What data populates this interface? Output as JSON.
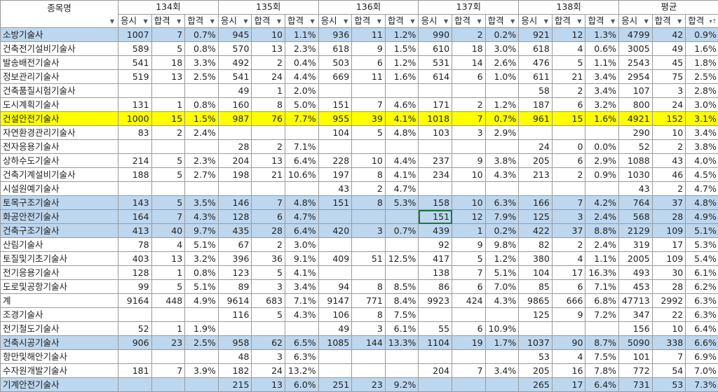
{
  "header": {
    "name_label": "종목명",
    "groups": [
      "134회",
      "135회",
      "136회",
      "137회",
      "138회",
      "평균"
    ],
    "sub_labels": [
      "응시",
      "합격",
      "합격"
    ],
    "filter_icon": "dropdown-arrow-icon",
    "sort_icon": "sort-filter-icon"
  },
  "colors": {
    "blue_highlight": "#bdd7ee",
    "yellow_highlight": "#ffff00",
    "selection": "#217346"
  },
  "selected_cell": {
    "row": "화공안전기술사",
    "column": "137회 응시"
  },
  "rows": [
    {
      "name": "소방기술사",
      "hl": "blue",
      "cells": [
        "1007",
        "7",
        "0.7%",
        "945",
        "10",
        "1.1%",
        "936",
        "11",
        "1.2%",
        "990",
        "2",
        "0.2%",
        "921",
        "12",
        "1.3%",
        "4799",
        "42",
        "0.9%"
      ]
    },
    {
      "name": "건축전기설비기술사",
      "hl": "",
      "cells": [
        "589",
        "5",
        "0.8%",
        "570",
        "13",
        "2.3%",
        "618",
        "9",
        "1.5%",
        "610",
        "18",
        "3.0%",
        "618",
        "4",
        "0.6%",
        "3005",
        "49",
        "1.6%"
      ]
    },
    {
      "name": "발송배전기술사",
      "hl": "",
      "cells": [
        "541",
        "18",
        "3.3%",
        "492",
        "2",
        "0.4%",
        "503",
        "6",
        "1.2%",
        "531",
        "14",
        "2.6%",
        "476",
        "5",
        "1.1%",
        "2543",
        "45",
        "1.8%"
      ]
    },
    {
      "name": "정보관리기술사",
      "hl": "",
      "cells": [
        "519",
        "13",
        "2.5%",
        "541",
        "24",
        "4.4%",
        "669",
        "11",
        "1.6%",
        "614",
        "6",
        "1.0%",
        "611",
        "21",
        "3.4%",
        "2954",
        "75",
        "2.5%"
      ]
    },
    {
      "name": "건축품질시험기술사",
      "hl": "",
      "cells": [
        "",
        "",
        "",
        "49",
        "1",
        "2.0%",
        "",
        "",
        "",
        "",
        "",
        "",
        "58",
        "2",
        "3.4%",
        "107",
        "3",
        "2.8%"
      ]
    },
    {
      "name": "도시계획기술사",
      "hl": "",
      "cells": [
        "131",
        "1",
        "0.8%",
        "160",
        "8",
        "5.0%",
        "151",
        "7",
        "4.6%",
        "171",
        "2",
        "1.2%",
        "187",
        "6",
        "3.2%",
        "800",
        "24",
        "3.0%"
      ]
    },
    {
      "name": "건설안전기술사",
      "hl": "yellow",
      "cells": [
        "1000",
        "15",
        "1.5%",
        "987",
        "76",
        "7.7%",
        "955",
        "39",
        "4.1%",
        "1018",
        "7",
        "0.7%",
        "961",
        "15",
        "1.6%",
        "4921",
        "152",
        "3.1%"
      ]
    },
    {
      "name": "자연환경관리기술사",
      "hl": "",
      "cells": [
        "83",
        "2",
        "2.4%",
        "",
        "",
        "",
        "104",
        "5",
        "4.8%",
        "103",
        "3",
        "2.9%",
        "",
        "",
        "",
        "290",
        "10",
        "3.4%"
      ]
    },
    {
      "name": "전자응용기술사",
      "hl": "",
      "cells": [
        "",
        "",
        "",
        "28",
        "2",
        "7.1%",
        "",
        "",
        "",
        "",
        "",
        "",
        "24",
        "0",
        "0.0%",
        "52",
        "2",
        "3.8%"
      ]
    },
    {
      "name": "상하수도기술사",
      "hl": "",
      "cells": [
        "214",
        "5",
        "2.3%",
        "204",
        "13",
        "6.4%",
        "228",
        "10",
        "4.4%",
        "237",
        "9",
        "3.8%",
        "205",
        "6",
        "2.9%",
        "1088",
        "43",
        "4.0%"
      ]
    },
    {
      "name": "건축기계설비기술사",
      "hl": "",
      "cells": [
        "188",
        "5",
        "2.7%",
        "198",
        "21",
        "10.6%",
        "197",
        "8",
        "4.1%",
        "234",
        "10",
        "4.3%",
        "213",
        "2",
        "0.9%",
        "1030",
        "46",
        "4.5%"
      ]
    },
    {
      "name": "시설원예기술사",
      "hl": "",
      "cells": [
        "",
        "",
        "",
        "",
        "",
        "",
        "43",
        "2",
        "4.7%",
        "",
        "",
        "",
        "",
        "",
        "",
        "43",
        "2",
        "4.7%"
      ]
    },
    {
      "name": "토목구조기술사",
      "hl": "blue",
      "cells": [
        "143",
        "5",
        "3.5%",
        "146",
        "7",
        "4.8%",
        "151",
        "8",
        "5.3%",
        "158",
        "10",
        "6.3%",
        "166",
        "7",
        "4.2%",
        "764",
        "37",
        "4.8%"
      ]
    },
    {
      "name": "화공안전기술사",
      "hl": "blue",
      "cells": [
        "164",
        "7",
        "4.3%",
        "128",
        "6",
        "4.7%",
        "",
        "",
        "",
        "151",
        "12",
        "7.9%",
        "125",
        "3",
        "2.4%",
        "568",
        "28",
        "4.9%"
      ]
    },
    {
      "name": "건축구조기술사",
      "hl": "blue",
      "cells": [
        "413",
        "40",
        "9.7%",
        "435",
        "28",
        "6.4%",
        "420",
        "3",
        "0.7%",
        "439",
        "1",
        "0.2%",
        "422",
        "37",
        "8.8%",
        "2129",
        "109",
        "5.1%"
      ]
    },
    {
      "name": "산림기술사",
      "hl": "",
      "cells": [
        "78",
        "4",
        "5.1%",
        "67",
        "2",
        "3.0%",
        "",
        "",
        "",
        "92",
        "9",
        "9.8%",
        "82",
        "2",
        "2.4%",
        "319",
        "17",
        "5.3%"
      ]
    },
    {
      "name": "토질및기초기술사",
      "hl": "",
      "cells": [
        "403",
        "13",
        "3.2%",
        "396",
        "36",
        "9.1%",
        "409",
        "51",
        "12.5%",
        "417",
        "5",
        "1.2%",
        "380",
        "4",
        "1.1%",
        "2005",
        "109",
        "5.4%"
      ]
    },
    {
      "name": "전기응용기술사",
      "hl": "",
      "cells": [
        "128",
        "1",
        "0.8%",
        "123",
        "5",
        "4.1%",
        "",
        "",
        "",
        "138",
        "7",
        "5.1%",
        "104",
        "17",
        "16.3%",
        "493",
        "30",
        "6.1%"
      ]
    },
    {
      "name": "도로및공항기술사",
      "hl": "",
      "cells": [
        "99",
        "5",
        "5.1%",
        "89",
        "3",
        "3.4%",
        "94",
        "8",
        "8.5%",
        "86",
        "6",
        "7.0%",
        "85",
        "6",
        "7.1%",
        "453",
        "28",
        "6.2%"
      ]
    },
    {
      "name": "계",
      "hl": "",
      "cells": [
        "9164",
        "448",
        "4.9%",
        "9614",
        "683",
        "7.1%",
        "9147",
        "771",
        "8.4%",
        "9923",
        "424",
        "4.3%",
        "9865",
        "666",
        "6.8%",
        "47713",
        "2992",
        "6.3%"
      ]
    },
    {
      "name": "조경기술사",
      "hl": "",
      "cells": [
        "",
        "",
        "",
        "116",
        "5",
        "4.3%",
        "106",
        "8",
        "7.5%",
        "",
        "",
        "",
        "125",
        "9",
        "7.2%",
        "347",
        "22",
        "6.3%"
      ]
    },
    {
      "name": "전기철도기술사",
      "hl": "",
      "cells": [
        "52",
        "1",
        "1.9%",
        "",
        "",
        "",
        "49",
        "3",
        "6.1%",
        "55",
        "6",
        "10.9%",
        "",
        "",
        "",
        "156",
        "10",
        "6.4%"
      ]
    },
    {
      "name": "건축시공기술사",
      "hl": "blue",
      "cells": [
        "906",
        "23",
        "2.5%",
        "958",
        "62",
        "6.5%",
        "1085",
        "144",
        "13.3%",
        "1104",
        "19",
        "1.7%",
        "1037",
        "90",
        "8.7%",
        "5090",
        "338",
        "6.6%"
      ]
    },
    {
      "name": "항만및해안기술사",
      "hl": "",
      "cells": [
        "",
        "",
        "",
        "48",
        "3",
        "6.3%",
        "",
        "",
        "",
        "",
        "",
        "",
        "53",
        "4",
        "7.5%",
        "101",
        "7",
        "6.9%"
      ]
    },
    {
      "name": "수자원개발기술사",
      "hl": "",
      "cells": [
        "181",
        "7",
        "3.9%",
        "182",
        "24",
        "13.2%",
        "",
        "",
        "",
        "204",
        "7",
        "3.4%",
        "205",
        "16",
        "7.8%",
        "772",
        "54",
        "7.0%"
      ]
    },
    {
      "name": "기계안전기술사",
      "hl": "blue",
      "cells": [
        "",
        "",
        "",
        "215",
        "13",
        "6.0%",
        "251",
        "23",
        "9.2%",
        "",
        "",
        "",
        "265",
        "17",
        "6.4%",
        "731",
        "53",
        "7.3%"
      ]
    }
  ]
}
